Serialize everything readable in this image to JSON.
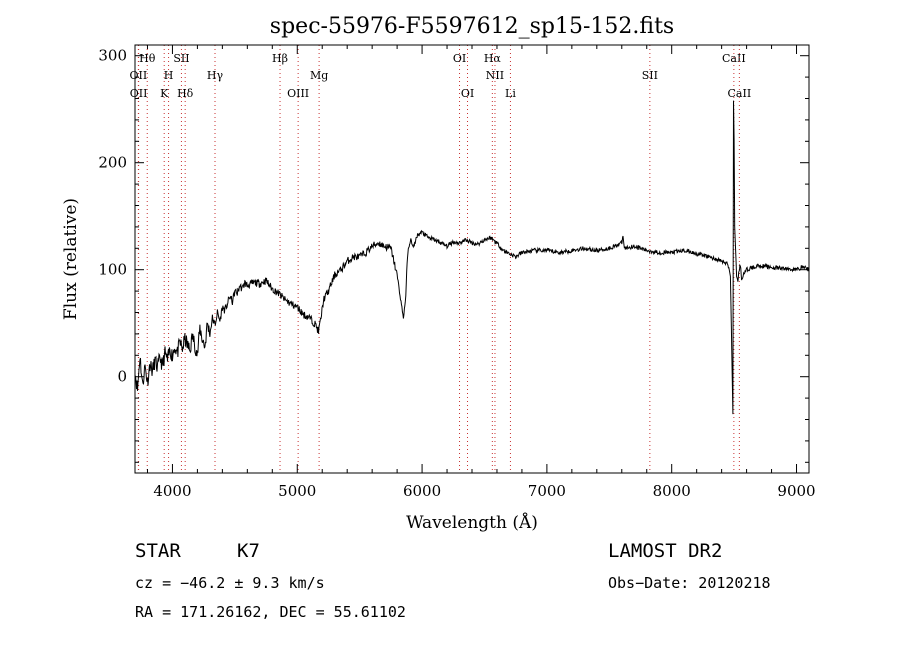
{
  "chart_data": {
    "type": "line",
    "title": "spec-55976-F5597612_sp15-152.fits",
    "xlabel": "Wavelength (Å)",
    "ylabel": "Flux (relative)",
    "xlim": [
      3700,
      9100
    ],
    "ylim": [
      -90,
      310
    ],
    "x_ticks": [
      4000,
      5000,
      6000,
      7000,
      8000,
      9000
    ],
    "y_ticks": [
      0,
      100,
      200,
      300
    ],
    "grid": false,
    "series": [
      {
        "line_color": "#000000",
        "x": [
          3700,
          3720,
          3740,
          3760,
          3780,
          3800,
          3820,
          3840,
          3860,
          3880,
          3900,
          3920,
          3940,
          3960,
          3980,
          4000,
          4020,
          4040,
          4060,
          4080,
          4100,
          4120,
          4140,
          4160,
          4180,
          4200,
          4220,
          4240,
          4260,
          4280,
          4300,
          4320,
          4340,
          4360,
          4380,
          4400,
          4420,
          4440,
          4460,
          4480,
          4500,
          4520,
          4540,
          4560,
          4580,
          4600,
          4650,
          4700,
          4750,
          4800,
          4850,
          4900,
          4950,
          5000,
          5050,
          5100,
          5150,
          5170,
          5190,
          5210,
          5250,
          5300,
          5350,
          5400,
          5450,
          5500,
          5550,
          5600,
          5650,
          5700,
          5750,
          5800,
          5850,
          5870,
          5880,
          5890,
          5900,
          5910,
          5930,
          5960,
          6000,
          6050,
          6100,
          6150,
          6200,
          6250,
          6300,
          6350,
          6400,
          6450,
          6500,
          6550,
          6600,
          6650,
          6700,
          6750,
          6800,
          6900,
          7000,
          7100,
          7200,
          7300,
          7400,
          7500,
          7600,
          7610,
          7620,
          7700,
          7800,
          7900,
          8000,
          8100,
          8200,
          8300,
          8400,
          8450,
          8470,
          8490,
          8495,
          8500,
          8505,
          8520,
          8530,
          8540,
          8550,
          8560,
          8600,
          8650,
          8700,
          8800,
          8900,
          9000,
          9050,
          9100
        ],
        "y": [
          5,
          -12,
          20,
          -8,
          10,
          -5,
          12,
          5,
          15,
          8,
          18,
          10,
          22,
          15,
          25,
          20,
          28,
          22,
          32,
          26,
          35,
          30,
          24,
          38,
          30,
          20,
          45,
          35,
          28,
          50,
          40,
          55,
          48,
          60,
          52,
          65,
          62,
          68,
          75,
          70,
          80,
          78,
          85,
          82,
          88,
          85,
          88,
          87,
          90,
          82,
          78,
          72,
          68,
          65,
          58,
          55,
          48,
          42,
          55,
          72,
          80,
          95,
          100,
          108,
          112,
          112,
          116,
          122,
          125,
          122,
          120,
          95,
          55,
          75,
          108,
          118,
          125,
          128,
          120,
          132,
          135,
          130,
          128,
          125,
          122,
          126,
          125,
          128,
          125,
          124,
          128,
          130,
          125,
          118,
          115,
          112,
          116,
          118,
          118,
          116,
          118,
          120,
          118,
          120,
          125,
          132,
          120,
          122,
          118,
          116,
          116,
          118,
          115,
          112,
          108,
          105,
          95,
          -35,
          260,
          220,
          140,
          95,
          88,
          100,
          104,
          92,
          100,
          102,
          104,
          102,
          101,
          100,
          103,
          100
        ]
      }
    ],
    "line_annotations": [
      {
        "label": "Hθ",
        "x": 3798,
        "row": 1
      },
      {
        "label": "OII",
        "x": 3727,
        "row": 2
      },
      {
        "label": "OII",
        "x": 3729,
        "row": 3
      },
      {
        "label": "H",
        "x": 3969,
        "row": 2
      },
      {
        "label": "K",
        "x": 3934,
        "row": 3
      },
      {
        "label": "SII",
        "x": 4072,
        "row": 1
      },
      {
        "label": "Hδ",
        "x": 4102,
        "row": 3
      },
      {
        "label": "Hγ",
        "x": 4341,
        "row": 2
      },
      {
        "label": "Hβ",
        "x": 4862,
        "row": 1
      },
      {
        "label": "OIII",
        "x": 5007,
        "row": 3
      },
      {
        "label": "Mg",
        "x": 5175,
        "row": 2
      },
      {
        "label": "OI",
        "x": 6300,
        "row": 1
      },
      {
        "label": "OI",
        "x": 6364,
        "row": 3
      },
      {
        "label": "Hα",
        "x": 6563,
        "row": 1
      },
      {
        "label": "NII",
        "x": 6584,
        "row": 2
      },
      {
        "label": "Li",
        "x": 6708,
        "row": 3
      },
      {
        "label": "SII",
        "x": 7825,
        "row": 2
      },
      {
        "label": "CaII",
        "x": 8498,
        "row": 1
      },
      {
        "label": "CaII",
        "x": 8542,
        "row": 3
      }
    ],
    "annotation_color": "#c83232"
  },
  "info": {
    "object_type": "STAR",
    "subclass": "K7",
    "survey": "LAMOST DR2",
    "redshift": "cz = −46.2 ± 9.3 km/s",
    "obs_date": "Obs−Date: 20120218",
    "coords": "RA = 171.26162, DEC =  55.61102"
  }
}
